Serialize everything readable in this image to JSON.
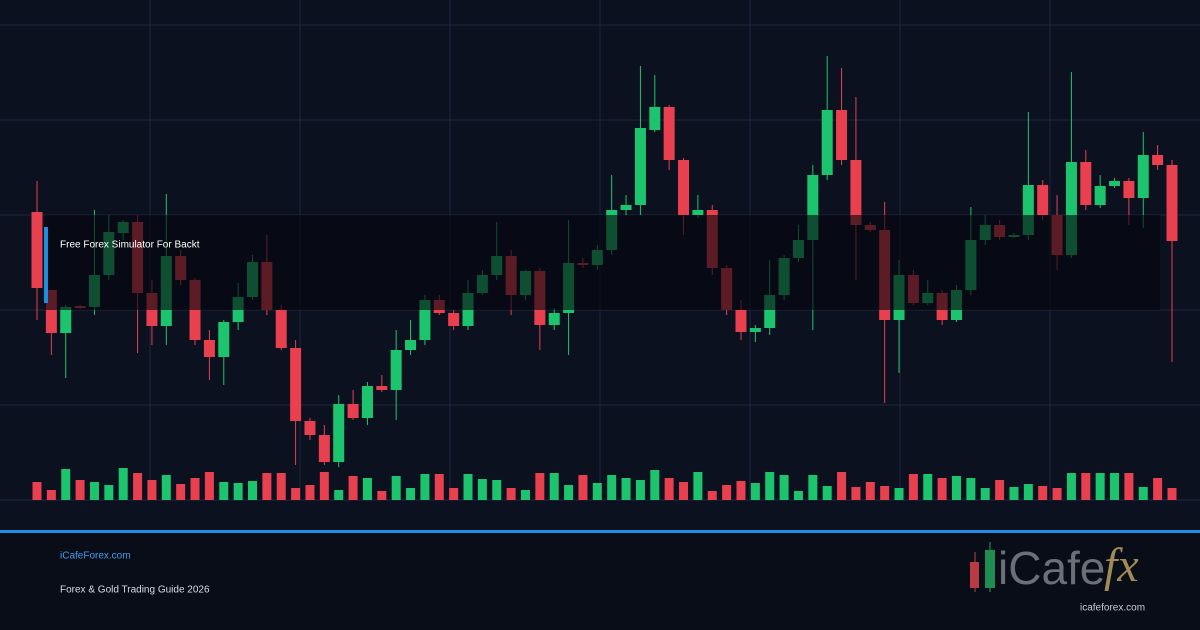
{
  "chart_data": {
    "type": "candlestick",
    "title": "Free Forex Simulator For Backt",
    "site": "iCafeForex.com",
    "subtitle": "Forex & Gold Trading Guide 2026",
    "logo": {
      "left": "iCafe",
      "right": "fx",
      "url": "icafeforex.com"
    },
    "up_color": "#1dc46e",
    "down_color": "#e8404f",
    "grid": true,
    "ylim": [
      0,
      500
    ],
    "yticks": [
      0,
      95,
      190,
      285,
      380,
      475
    ],
    "y2lim": [
      0,
      100
    ],
    "open": [
      288,
      210,
      167,
      194,
      193,
      225,
      267,
      278,
      207,
      174,
      244,
      220,
      160,
      143,
      178,
      203,
      238,
      190,
      152,
      79,
      65,
      38,
      96,
      82,
      114,
      110,
      150,
      160,
      200,
      187,
      174,
      207,
      225,
      244,
      205,
      229,
      175,
      187,
      237,
      235,
      250,
      290,
      295,
      370,
      393,
      340,
      285,
      290,
      232,
      190,
      168,
      172,
      205,
      242,
      260,
      325,
      390,
      340,
      275,
      270,
      180,
      225,
      197,
      207,
      180,
      210,
      260,
      275,
      263,
      265,
      315,
      285,
      245,
      338,
      295,
      314,
      319,
      302,
      345,
      335
    ],
    "high": [
      319,
      210,
      195,
      195,
      290,
      285,
      280,
      285,
      220,
      306,
      250,
      222,
      170,
      180,
      217,
      245,
      265,
      195,
      160,
      82,
      75,
      105,
      110,
      118,
      125,
      170,
      180,
      205,
      205,
      190,
      220,
      230,
      278,
      250,
      230,
      232,
      192,
      280,
      242,
      255,
      325,
      305,
      434,
      425,
      395,
      342,
      305,
      295,
      235,
      200,
      175,
      240,
      245,
      275,
      335,
      444,
      432,
      403,
      278,
      298,
      240,
      230,
      220,
      210,
      215,
      293,
      285,
      280,
      267,
      388,
      320,
      305,
      428,
      350,
      325,
      322,
      322,
      368,
      355,
      340
    ],
    "low": [
      180,
      145,
      122,
      191,
      185,
      220,
      260,
      147,
      155,
      155,
      215,
      155,
      120,
      115,
      170,
      200,
      185,
      150,
      35,
      60,
      35,
      33,
      80,
      75,
      108,
      80,
      145,
      155,
      185,
      170,
      170,
      205,
      220,
      185,
      200,
      150,
      170,
      145,
      232,
      230,
      245,
      285,
      285,
      368,
      330,
      265,
      282,
      225,
      185,
      160,
      158,
      165,
      200,
      238,
      170,
      320,
      335,
      220,
      268,
      97,
      127,
      195,
      195,
      175,
      178,
      205,
      255,
      260,
      262,
      260,
      280,
      230,
      242,
      290,
      292,
      312,
      275,
      272,
      330,
      138
    ],
    "close": [
      212,
      167,
      193,
      192,
      225,
      268,
      278,
      207,
      174,
      244,
      220,
      160,
      143,
      178,
      203,
      238,
      190,
      152,
      79,
      65,
      38,
      96,
      82,
      114,
      110,
      150,
      160,
      200,
      187,
      174,
      207,
      225,
      244,
      205,
      229,
      175,
      187,
      237,
      235,
      250,
      290,
      295,
      372,
      393,
      340,
      285,
      290,
      232,
      190,
      168,
      172,
      205,
      242,
      260,
      325,
      390,
      340,
      275,
      270,
      180,
      225,
      197,
      207,
      180,
      210,
      260,
      275,
      263,
      265,
      315,
      285,
      245,
      338,
      295,
      314,
      319,
      302,
      345,
      335,
      259
    ],
    "volume": [
      18,
      10,
      31,
      20,
      18,
      15,
      32,
      27,
      20,
      25,
      16,
      22,
      28,
      18,
      17,
      19,
      27,
      27,
      12,
      15,
      28,
      10,
      24,
      22,
      9,
      24,
      12,
      26,
      26,
      12,
      26,
      21,
      20,
      12,
      10,
      27,
      27,
      15,
      25,
      17,
      25,
      22,
      20,
      30,
      22,
      18,
      28,
      9,
      15,
      19,
      17,
      28,
      25,
      9,
      25,
      14,
      28,
      13,
      18,
      14,
      12,
      26,
      26,
      22,
      24,
      22,
      12,
      20,
      13,
      16,
      14,
      12,
      27,
      27,
      27,
      27,
      27,
      13,
      22,
      12
    ]
  }
}
